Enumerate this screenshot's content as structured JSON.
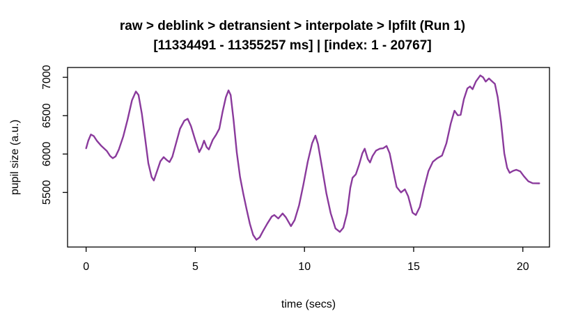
{
  "figure": {
    "title": "raw > deblink > detransient > interpolate > lpfilt (Run 1)",
    "subtitle": "[11334491 - 11355257 ms] | [index: 1 - 20767]"
  },
  "chart_data": {
    "type": "line",
    "title": "raw > deblink > detransient > interpolate > lpfilt (Run 1)",
    "subtitle": "[11334491 - 11355257 ms] | [index: 1 - 20767]",
    "xlabel": "time (secs)",
    "ylabel": "pupil size (a.u.)",
    "x_ticks": [
      0,
      5,
      10,
      15,
      20
    ],
    "y_ticks": [
      5500,
      6000,
      6500,
      7000
    ],
    "xlim": [
      -0.85,
      21.22
    ],
    "ylim": [
      4788,
      7128
    ],
    "grid": false,
    "legend": "none",
    "background": "#FFFFFF",
    "box_color": "#000000",
    "line_color": "#8A3A9C",
    "line_width": 2.4,
    "series": [
      {
        "name": "pupil size",
        "points": [
          [
            0.0,
            6075
          ],
          [
            0.1,
            6175
          ],
          [
            0.22,
            6255
          ],
          [
            0.35,
            6235
          ],
          [
            0.5,
            6170
          ],
          [
            0.7,
            6105
          ],
          [
            0.95,
            6040
          ],
          [
            1.1,
            5975
          ],
          [
            1.22,
            5945
          ],
          [
            1.35,
            5970
          ],
          [
            1.5,
            6060
          ],
          [
            1.7,
            6230
          ],
          [
            1.9,
            6450
          ],
          [
            2.1,
            6700
          ],
          [
            2.28,
            6815
          ],
          [
            2.4,
            6770
          ],
          [
            2.55,
            6530
          ],
          [
            2.7,
            6210
          ],
          [
            2.85,
            5880
          ],
          [
            3.0,
            5700
          ],
          [
            3.1,
            5655
          ],
          [
            3.25,
            5780
          ],
          [
            3.4,
            5905
          ],
          [
            3.55,
            5960
          ],
          [
            3.7,
            5920
          ],
          [
            3.82,
            5895
          ],
          [
            3.95,
            5965
          ],
          [
            4.1,
            6120
          ],
          [
            4.3,
            6330
          ],
          [
            4.5,
            6435
          ],
          [
            4.65,
            6460
          ],
          [
            4.8,
            6365
          ],
          [
            5.0,
            6180
          ],
          [
            5.18,
            6025
          ],
          [
            5.3,
            6090
          ],
          [
            5.4,
            6175
          ],
          [
            5.52,
            6090
          ],
          [
            5.62,
            6060
          ],
          [
            5.8,
            6185
          ],
          [
            5.95,
            6250
          ],
          [
            6.1,
            6330
          ],
          [
            6.25,
            6550
          ],
          [
            6.4,
            6740
          ],
          [
            6.52,
            6830
          ],
          [
            6.62,
            6770
          ],
          [
            6.75,
            6450
          ],
          [
            6.9,
            6020
          ],
          [
            7.05,
            5700
          ],
          [
            7.2,
            5480
          ],
          [
            7.35,
            5280
          ],
          [
            7.5,
            5090
          ],
          [
            7.65,
            4945
          ],
          [
            7.8,
            4882
          ],
          [
            7.95,
            4915
          ],
          [
            8.1,
            4995
          ],
          [
            8.3,
            5095
          ],
          [
            8.5,
            5185
          ],
          [
            8.62,
            5205
          ],
          [
            8.8,
            5160
          ],
          [
            9.0,
            5225
          ],
          [
            9.15,
            5175
          ],
          [
            9.38,
            5060
          ],
          [
            9.55,
            5140
          ],
          [
            9.75,
            5330
          ],
          [
            9.95,
            5600
          ],
          [
            10.15,
            5900
          ],
          [
            10.35,
            6140
          ],
          [
            10.5,
            6240
          ],
          [
            10.62,
            6130
          ],
          [
            10.8,
            5830
          ],
          [
            11.0,
            5490
          ],
          [
            11.2,
            5230
          ],
          [
            11.42,
            5030
          ],
          [
            11.62,
            4985
          ],
          [
            11.78,
            5040
          ],
          [
            11.95,
            5230
          ],
          [
            12.1,
            5560
          ],
          [
            12.2,
            5690
          ],
          [
            12.35,
            5735
          ],
          [
            12.5,
            5860
          ],
          [
            12.65,
            6010
          ],
          [
            12.76,
            6070
          ],
          [
            12.9,
            5935
          ],
          [
            13.0,
            5890
          ],
          [
            13.12,
            5975
          ],
          [
            13.28,
            6045
          ],
          [
            13.45,
            6070
          ],
          [
            13.6,
            6075
          ],
          [
            13.76,
            6105
          ],
          [
            13.9,
            6010
          ],
          [
            14.05,
            5800
          ],
          [
            14.22,
            5570
          ],
          [
            14.42,
            5500
          ],
          [
            14.6,
            5540
          ],
          [
            14.75,
            5450
          ],
          [
            14.95,
            5235
          ],
          [
            15.1,
            5205
          ],
          [
            15.28,
            5310
          ],
          [
            15.48,
            5560
          ],
          [
            15.68,
            5780
          ],
          [
            15.88,
            5900
          ],
          [
            16.08,
            5945
          ],
          [
            16.3,
            5980
          ],
          [
            16.5,
            6140
          ],
          [
            16.7,
            6400
          ],
          [
            16.87,
            6565
          ],
          [
            17.02,
            6505
          ],
          [
            17.15,
            6510
          ],
          [
            17.3,
            6715
          ],
          [
            17.46,
            6855
          ],
          [
            17.58,
            6880
          ],
          [
            17.7,
            6845
          ],
          [
            17.85,
            6945
          ],
          [
            18.05,
            7025
          ],
          [
            18.18,
            7000
          ],
          [
            18.3,
            6945
          ],
          [
            18.45,
            6985
          ],
          [
            18.6,
            6945
          ],
          [
            18.72,
            6915
          ],
          [
            18.85,
            6740
          ],
          [
            19.0,
            6420
          ],
          [
            19.15,
            6010
          ],
          [
            19.28,
            5820
          ],
          [
            19.4,
            5755
          ],
          [
            19.55,
            5780
          ],
          [
            19.7,
            5795
          ],
          [
            19.88,
            5775
          ],
          [
            20.05,
            5710
          ],
          [
            20.25,
            5645
          ],
          [
            20.45,
            5620
          ],
          [
            20.75,
            5618
          ]
        ]
      }
    ]
  }
}
